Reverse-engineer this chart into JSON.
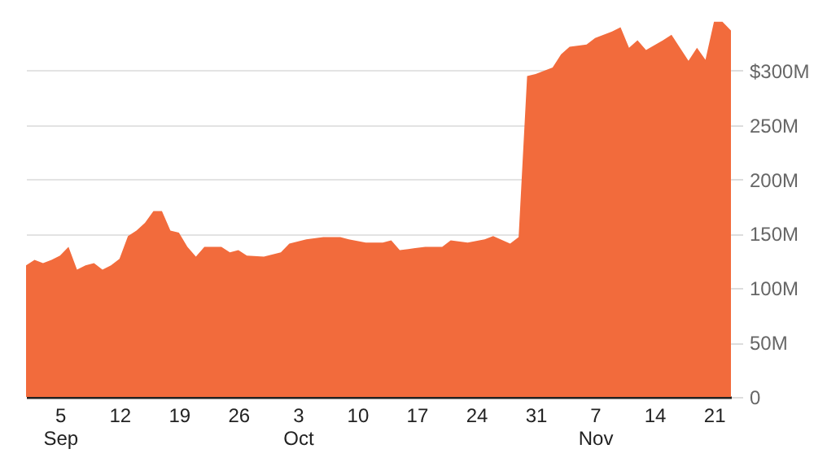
{
  "chart_data": {
    "type": "area",
    "x": [
      "--09-01",
      "--09-02",
      "--09-03",
      "--09-04",
      "--09-05",
      "--09-06",
      "--09-07",
      "--09-08",
      "--09-09",
      "--09-10",
      "--09-11",
      "--09-12",
      "--09-13",
      "--09-14",
      "--09-15",
      "--09-16",
      "--09-17",
      "--09-18",
      "--09-19",
      "--09-20",
      "--09-21",
      "--09-22",
      "--09-24",
      "--09-25",
      "--09-26",
      "--09-27",
      "--09-29",
      "--10-01",
      "--10-02",
      "--10-04",
      "--10-06",
      "--10-08",
      "--10-09",
      "--10-11",
      "--10-13",
      "--10-14",
      "--10-15",
      "--10-16",
      "--10-18",
      "--10-20",
      "--10-21",
      "--10-23",
      "--10-25",
      "--10-26",
      "--10-28",
      "--10-29",
      "--10-30",
      "--10-31",
      "--11-02",
      "--11-03",
      "--11-04",
      "--11-06",
      "--11-07",
      "--11-09",
      "--11-10",
      "--11-11",
      "--11-12",
      "--11-13",
      "--11-15",
      "--11-16",
      "--11-17",
      "--11-18",
      "--11-19",
      "--11-20",
      "--11-21",
      "--11-22",
      "--11-23"
    ],
    "series": [
      {
        "color": "#f26b3c",
        "values": [
          121,
          126,
          123,
          126,
          130,
          138,
          117,
          121,
          123,
          117,
          121,
          127,
          148,
          153,
          160,
          171,
          171,
          153,
          151,
          138,
          129,
          138,
          138,
          133,
          135,
          130,
          129,
          133,
          141,
          145,
          147,
          147,
          145,
          142,
          142,
          144,
          135,
          136,
          138,
          138,
          144,
          142,
          145,
          148,
          141,
          147,
          295,
          297,
          303,
          315,
          322,
          324,
          330,
          336,
          340,
          321,
          328,
          319,
          328,
          333,
          321,
          309,
          321,
          310,
          345,
          345,
          337
        ]
      }
    ],
    "xlim": [
      "--09-01",
      "--11-23"
    ],
    "xticks": [
      {
        "value": "--09-05",
        "label": "5\nSep"
      },
      {
        "value": "--09-12",
        "label": "12"
      },
      {
        "value": "--09-19",
        "label": "19"
      },
      {
        "value": "--09-26",
        "label": "26"
      },
      {
        "value": "--10-03",
        "label": "3\nOct"
      },
      {
        "value": "--10-10",
        "label": "10"
      },
      {
        "value": "--10-17",
        "label": "17"
      },
      {
        "value": "--10-24",
        "label": "24"
      },
      {
        "value": "--10-31",
        "label": "31"
      },
      {
        "value": "--11-07",
        "label": "7\nNov"
      },
      {
        "value": "--11-14",
        "label": "14"
      },
      {
        "value": "--11-21",
        "label": "21"
      }
    ],
    "ylim": [
      0,
      365
    ],
    "yticks": [
      {
        "value": 0,
        "label": "0"
      },
      {
        "value": 50,
        "label": "50M"
      },
      {
        "value": 100,
        "label": "100M"
      },
      {
        "value": 150,
        "label": "150M"
      },
      {
        "value": 200,
        "label": "200M"
      },
      {
        "value": 250,
        "label": "250M"
      },
      {
        "value": 300,
        "label": "$300M"
      }
    ],
    "grid": "y"
  }
}
